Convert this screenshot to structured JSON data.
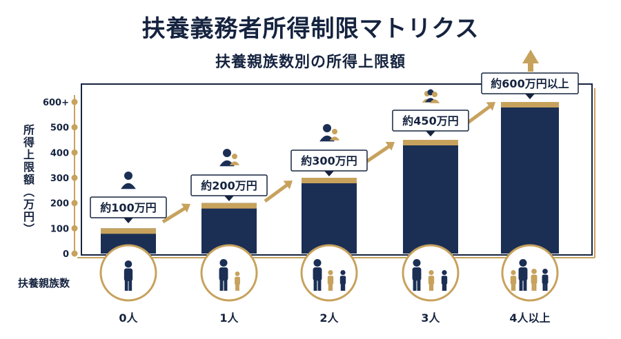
{
  "title": "扶養義務者所得制限マトリクス",
  "subtitle": "扶養親族数別の所得上限額",
  "colors": {
    "navy": "#1b2f55",
    "gold": "#c7a25d",
    "frame": "#15233f",
    "line": "#c7a25d"
  },
  "chart_data": {
    "type": "bar",
    "ylabel": "所得上限額（万円）",
    "xlabel": "扶養親族数",
    "ylim": [
      0,
      600
    ],
    "yticks": [
      "0",
      "100",
      "200",
      "300",
      "400",
      "500",
      "600+"
    ],
    "categories": [
      "0人",
      "1人",
      "2人",
      "3人",
      "4人以上"
    ],
    "values": [
      100,
      200,
      300,
      450,
      600
    ],
    "data_labels": [
      "約100万円",
      "約200万円",
      "約300万円",
      "約450万円",
      "約600万円以上"
    ],
    "icons": [
      "single-adult-icon",
      "adult-with-child-icon",
      "adult-with-two-children-icon",
      "adult-with-three-children-icon",
      "family-of-four-icon"
    ]
  }
}
